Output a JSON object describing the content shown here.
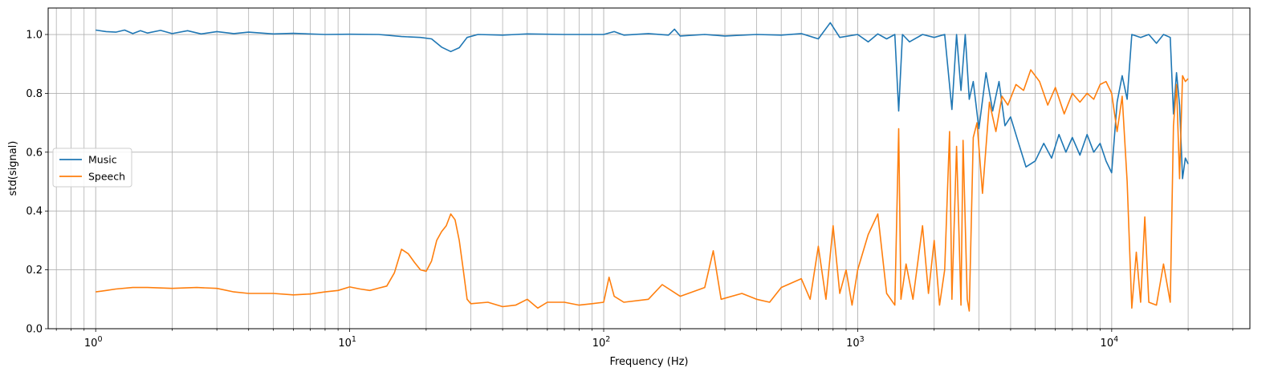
{
  "chart_data": {
    "type": "line",
    "xlabel": "Frequency (Hz)",
    "ylabel": "std(signal)",
    "x_scale": "log",
    "xlim": [
      0.65,
      35000
    ],
    "ylim": [
      0.0,
      1.09
    ],
    "grid": "major and minor",
    "legend_position": "center-left",
    "x_ticks": [
      {
        "value": 1,
        "base": "10",
        "exp": "0"
      },
      {
        "value": 10,
        "base": "10",
        "exp": "1"
      },
      {
        "value": 100,
        "base": "10",
        "exp": "2"
      },
      {
        "value": 1000,
        "base": "10",
        "exp": "3"
      },
      {
        "value": 10000,
        "base": "10",
        "exp": "4"
      }
    ],
    "y_ticks": [
      {
        "value": 0.0,
        "label": "0.0"
      },
      {
        "value": 0.2,
        "label": "0.2"
      },
      {
        "value": 0.4,
        "label": "0.4"
      },
      {
        "value": 0.6,
        "label": "0.6"
      },
      {
        "value": 0.8,
        "label": "0.8"
      },
      {
        "value": 1.0,
        "label": "1.0"
      }
    ],
    "series": [
      {
        "name": "Music",
        "color": "#1f77b4",
        "points": [
          [
            1.0,
            1.015
          ],
          [
            1.1,
            1.01
          ],
          [
            1.2,
            1.008
          ],
          [
            1.3,
            1.015
          ],
          [
            1.4,
            1.003
          ],
          [
            1.5,
            1.013
          ],
          [
            1.6,
            1.005
          ],
          [
            1.8,
            1.014
          ],
          [
            2.0,
            1.003
          ],
          [
            2.3,
            1.013
          ],
          [
            2.6,
            1.002
          ],
          [
            3.0,
            1.01
          ],
          [
            3.5,
            1.003
          ],
          [
            4.0,
            1.008
          ],
          [
            5.0,
            1.002
          ],
          [
            6.0,
            1.004
          ],
          [
            8.0,
            1.0
          ],
          [
            10.0,
            1.001
          ],
          [
            13.0,
            1.0
          ],
          [
            16.0,
            0.993
          ],
          [
            19.0,
            0.99
          ],
          [
            21.0,
            0.985
          ],
          [
            23.0,
            0.957
          ],
          [
            25.0,
            0.942
          ],
          [
            27.0,
            0.955
          ],
          [
            29.0,
            0.99
          ],
          [
            32.0,
            1.0
          ],
          [
            40.0,
            0.998
          ],
          [
            50.0,
            1.002
          ],
          [
            70.0,
            1.0
          ],
          [
            100.0,
            1.0
          ],
          [
            110.0,
            1.01
          ],
          [
            120.0,
            0.998
          ],
          [
            150.0,
            1.003
          ],
          [
            180.0,
            0.998
          ],
          [
            190.0,
            1.018
          ],
          [
            200.0,
            0.995
          ],
          [
            250.0,
            1.0
          ],
          [
            300.0,
            0.995
          ],
          [
            400.0,
            1.0
          ],
          [
            500.0,
            0.998
          ],
          [
            600.0,
            1.003
          ],
          [
            700.0,
            0.985
          ],
          [
            780.0,
            1.04
          ],
          [
            850.0,
            0.99
          ],
          [
            1000.0,
            1.0
          ],
          [
            1100.0,
            0.975
          ],
          [
            1200.0,
            1.002
          ],
          [
            1300.0,
            0.985
          ],
          [
            1400.0,
            1.0
          ],
          [
            1450.0,
            0.74
          ],
          [
            1500.0,
            1.0
          ],
          [
            1600.0,
            0.975
          ],
          [
            1800.0,
            1.0
          ],
          [
            2000.0,
            0.99
          ],
          [
            2200.0,
            1.0
          ],
          [
            2350.0,
            0.745
          ],
          [
            2450.0,
            1.0
          ],
          [
            2550.0,
            0.81
          ],
          [
            2650.0,
            1.0
          ],
          [
            2750.0,
            0.78
          ],
          [
            2850.0,
            0.84
          ],
          [
            3000.0,
            0.68
          ],
          [
            3200.0,
            0.87
          ],
          [
            3400.0,
            0.74
          ],
          [
            3600.0,
            0.84
          ],
          [
            3800.0,
            0.69
          ],
          [
            4000.0,
            0.72
          ],
          [
            4300.0,
            0.63
          ],
          [
            4600.0,
            0.55
          ],
          [
            5000.0,
            0.57
          ],
          [
            5400.0,
            0.63
          ],
          [
            5800.0,
            0.58
          ],
          [
            6200.0,
            0.66
          ],
          [
            6600.0,
            0.6
          ],
          [
            7000.0,
            0.65
          ],
          [
            7500.0,
            0.59
          ],
          [
            8000.0,
            0.66
          ],
          [
            8500.0,
            0.6
          ],
          [
            9000.0,
            0.63
          ],
          [
            9500.0,
            0.57
          ],
          [
            10000.0,
            0.53
          ],
          [
            10500.0,
            0.77
          ],
          [
            11000.0,
            0.86
          ],
          [
            11500.0,
            0.78
          ],
          [
            12000.0,
            1.0
          ],
          [
            13000.0,
            0.99
          ],
          [
            14000.0,
            1.0
          ],
          [
            15000.0,
            0.97
          ],
          [
            16000.0,
            1.0
          ],
          [
            17000.0,
            0.99
          ],
          [
            17500.0,
            0.73
          ],
          [
            18000.0,
            0.87
          ],
          [
            18500.0,
            0.76
          ],
          [
            19000.0,
            0.51
          ],
          [
            19500.0,
            0.58
          ],
          [
            20000.0,
            0.56
          ]
        ]
      },
      {
        "name": "Speech",
        "color": "#ff7f0e",
        "points": [
          [
            1.0,
            0.125
          ],
          [
            1.1,
            0.13
          ],
          [
            1.2,
            0.135
          ],
          [
            1.4,
            0.14
          ],
          [
            1.6,
            0.14
          ],
          [
            2.0,
            0.137
          ],
          [
            2.5,
            0.14
          ],
          [
            3.0,
            0.137
          ],
          [
            3.5,
            0.125
          ],
          [
            4.0,
            0.12
          ],
          [
            5.0,
            0.12
          ],
          [
            6.0,
            0.115
          ],
          [
            7.0,
            0.118
          ],
          [
            8.0,
            0.125
          ],
          [
            9.0,
            0.13
          ],
          [
            10.0,
            0.142
          ],
          [
            11.0,
            0.135
          ],
          [
            12.0,
            0.13
          ],
          [
            13.0,
            0.138
          ],
          [
            14.0,
            0.145
          ],
          [
            15.0,
            0.19
          ],
          [
            16.0,
            0.27
          ],
          [
            17.0,
            0.255
          ],
          [
            18.0,
            0.225
          ],
          [
            19.0,
            0.2
          ],
          [
            20.0,
            0.195
          ],
          [
            21.0,
            0.23
          ],
          [
            22.0,
            0.3
          ],
          [
            23.0,
            0.33
          ],
          [
            24.0,
            0.35
          ],
          [
            25.0,
            0.39
          ],
          [
            26.0,
            0.37
          ],
          [
            27.0,
            0.3
          ],
          [
            28.0,
            0.2
          ],
          [
            29.0,
            0.1
          ],
          [
            30.0,
            0.085
          ],
          [
            35.0,
            0.09
          ],
          [
            40.0,
            0.075
          ],
          [
            45.0,
            0.08
          ],
          [
            50.0,
            0.1
          ],
          [
            55.0,
            0.07
          ],
          [
            60.0,
            0.09
          ],
          [
            70.0,
            0.09
          ],
          [
            80.0,
            0.08
          ],
          [
            90.0,
            0.085
          ],
          [
            100.0,
            0.09
          ],
          [
            105.0,
            0.175
          ],
          [
            110.0,
            0.11
          ],
          [
            120.0,
            0.09
          ],
          [
            150.0,
            0.1
          ],
          [
            170.0,
            0.15
          ],
          [
            200.0,
            0.11
          ],
          [
            250.0,
            0.14
          ],
          [
            270.0,
            0.265
          ],
          [
            290.0,
            0.1
          ],
          [
            350.0,
            0.12
          ],
          [
            400.0,
            0.1
          ],
          [
            450.0,
            0.09
          ],
          [
            500.0,
            0.14
          ],
          [
            600.0,
            0.17
          ],
          [
            650.0,
            0.1
          ],
          [
            700.0,
            0.28
          ],
          [
            750.0,
            0.1
          ],
          [
            800.0,
            0.35
          ],
          [
            850.0,
            0.12
          ],
          [
            900.0,
            0.2
          ],
          [
            950.0,
            0.08
          ],
          [
            1000.0,
            0.2
          ],
          [
            1100.0,
            0.32
          ],
          [
            1200.0,
            0.39
          ],
          [
            1300.0,
            0.12
          ],
          [
            1400.0,
            0.08
          ],
          [
            1450.0,
            0.68
          ],
          [
            1480.0,
            0.1
          ],
          [
            1550.0,
            0.22
          ],
          [
            1650.0,
            0.1
          ],
          [
            1800.0,
            0.35
          ],
          [
            1900.0,
            0.12
          ],
          [
            2000.0,
            0.3
          ],
          [
            2100.0,
            0.08
          ],
          [
            2200.0,
            0.2
          ],
          [
            2300.0,
            0.67
          ],
          [
            2350.0,
            0.1
          ],
          [
            2450.0,
            0.62
          ],
          [
            2550.0,
            0.08
          ],
          [
            2600.0,
            0.64
          ],
          [
            2700.0,
            0.1
          ],
          [
            2750.0,
            0.06
          ],
          [
            2850.0,
            0.65
          ],
          [
            2950.0,
            0.7
          ],
          [
            3100.0,
            0.46
          ],
          [
            3300.0,
            0.77
          ],
          [
            3500.0,
            0.67
          ],
          [
            3700.0,
            0.79
          ],
          [
            3900.0,
            0.76
          ],
          [
            4200.0,
            0.83
          ],
          [
            4500.0,
            0.81
          ],
          [
            4800.0,
            0.88
          ],
          [
            5200.0,
            0.84
          ],
          [
            5600.0,
            0.76
          ],
          [
            6000.0,
            0.82
          ],
          [
            6500.0,
            0.73
          ],
          [
            7000.0,
            0.8
          ],
          [
            7500.0,
            0.77
          ],
          [
            8000.0,
            0.8
          ],
          [
            8500.0,
            0.78
          ],
          [
            9000.0,
            0.83
          ],
          [
            9500.0,
            0.84
          ],
          [
            10000.0,
            0.8
          ],
          [
            10500.0,
            0.67
          ],
          [
            11000.0,
            0.79
          ],
          [
            11500.0,
            0.5
          ],
          [
            12000.0,
            0.07
          ],
          [
            12500.0,
            0.26
          ],
          [
            13000.0,
            0.09
          ],
          [
            13500.0,
            0.38
          ],
          [
            14000.0,
            0.09
          ],
          [
            15000.0,
            0.08
          ],
          [
            16000.0,
            0.22
          ],
          [
            17000.0,
            0.09
          ],
          [
            17500.0,
            0.69
          ],
          [
            18000.0,
            0.83
          ],
          [
            18500.0,
            0.51
          ],
          [
            19000.0,
            0.86
          ],
          [
            19500.0,
            0.84
          ],
          [
            20000.0,
            0.85
          ]
        ]
      }
    ]
  }
}
